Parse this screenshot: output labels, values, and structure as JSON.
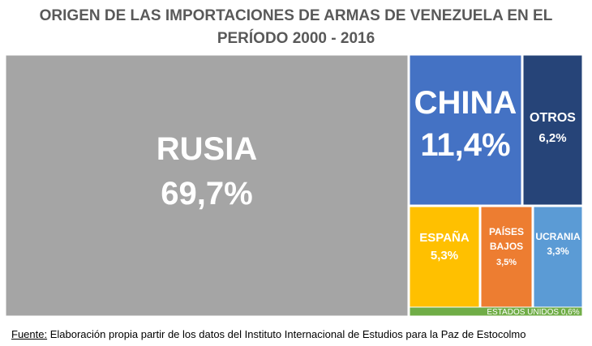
{
  "title_line1": "ORIGEN DE LAS IMPORTACIONES DE ARMAS DE VENEZUELA EN EL",
  "title_line2": "PERÍODO  2000 - 2016",
  "source_label": "Fuente:",
  "source_text": " Elaboración propia  partir de los datos del Instituto Internacional de Estudios para la Paz de Estocolmo",
  "chart_data": {
    "type": "treemap",
    "title": "ORIGEN DE LAS IMPORTACIONES DE ARMAS DE VENEZUELA EN EL PERÍODO  2000 - 2016",
    "items": [
      {
        "label": "RUSIA",
        "value": 69.7,
        "value_label": "69,7%",
        "color": "#a5a5a5"
      },
      {
        "label": "CHINA",
        "value": 11.4,
        "value_label": "11,4%",
        "color": "#4472c4"
      },
      {
        "label": "OTROS",
        "value": 6.2,
        "value_label": "6,2%",
        "color": "#264478"
      },
      {
        "label": "ESPAÑA",
        "value": 5.3,
        "value_label": "5,3%",
        "color": "#ffc000"
      },
      {
        "label": "PAÍSES BAJOS",
        "value": 3.5,
        "value_label": "3,5%",
        "color": "#ed7d31"
      },
      {
        "label": "UCRANIA",
        "value": 3.3,
        "value_label": "3,3%",
        "color": "#5b9bd5"
      },
      {
        "label": "ESTADOS UNIDOS",
        "value": 0.6,
        "value_label": "0,6%",
        "color": "#70ad47"
      }
    ]
  }
}
